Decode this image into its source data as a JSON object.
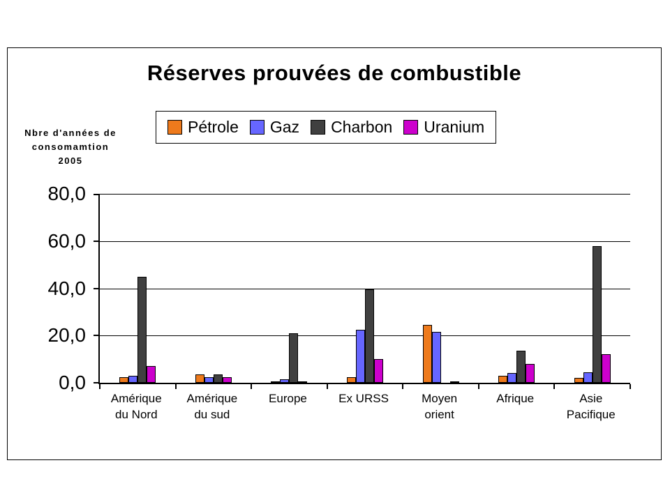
{
  "chart_data": {
    "type": "bar",
    "title": "Réserves prouvées de combustible",
    "ylabel_lines": [
      "Nbre d'années de",
      "consomamtion",
      "2005"
    ],
    "categories": [
      [
        "Amérique",
        "du Nord"
      ],
      [
        "Amérique",
        "du sud"
      ],
      [
        "Europe"
      ],
      [
        "Ex URSS"
      ],
      [
        "Moyen",
        "orient"
      ],
      [
        "Afrique"
      ],
      [
        "Asie",
        "Pacifique"
      ]
    ],
    "series": [
      {
        "name": "Pétrole",
        "color": "#EE7A1C",
        "values": [
          2.5,
          3.5,
          0.5,
          2.5,
          24.5,
          3.0,
          2.0
        ]
      },
      {
        "name": "Gaz",
        "color": "#6666FF",
        "values": [
          3.0,
          2.5,
          1.5,
          22.5,
          21.5,
          4.0,
          4.5
        ]
      },
      {
        "name": "Charbon",
        "color": "#404040",
        "values": [
          45.0,
          3.5,
          21.0,
          39.5,
          0.0,
          13.5,
          58.0
        ]
      },
      {
        "name": "Uranium",
        "color": "#CC00CC",
        "values": [
          7.0,
          2.5,
          0.5,
          10.0,
          0.5,
          8.0,
          12.0
        ]
      }
    ],
    "ylim": [
      0,
      80
    ],
    "ytick_labels": [
      "80,0",
      "60,0",
      "40,0",
      "20,0",
      "0,0"
    ],
    "grid": true,
    "legend_position": "top"
  }
}
